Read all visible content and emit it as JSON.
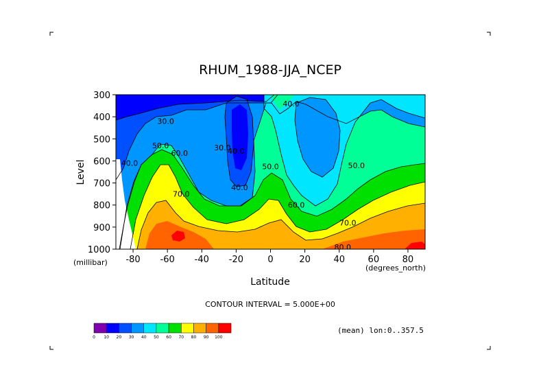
{
  "chart_data": {
    "type": "contour",
    "title": "RHUM_1988-JJA_NCEP",
    "xlabel": "Latitude",
    "ylabel": "Level",
    "x_unit": "(degrees_north)",
    "y_unit": "(millibar)",
    "xlim": [
      -90,
      90
    ],
    "ylim": [
      1000,
      300
    ],
    "x_ticks": [
      "-80",
      "-60",
      "-40",
      "-20",
      "0",
      "20",
      "40",
      "60",
      "80"
    ],
    "x_tick_values": [
      -80,
      -60,
      -40,
      -20,
      0,
      20,
      40,
      60,
      80
    ],
    "y_ticks": [
      "300",
      "400",
      "500",
      "600",
      "700",
      "800",
      "900",
      "1000"
    ],
    "y_tick_values": [
      300,
      400,
      500,
      600,
      700,
      800,
      900,
      1000
    ],
    "contour_interval_text": "CONTOUR INTERVAL = 5.000E+00",
    "footnote": "(mean) lon:0..357.5",
    "colorbar": {
      "labels": [
        "0",
        "10",
        "20",
        "30",
        "40",
        "50",
        "60",
        "70",
        "80",
        "90",
        "100"
      ],
      "colors": [
        "#8000b0",
        "#0000ff",
        "#0050ff",
        "#0096ff",
        "#00e6ff",
        "#00ff96",
        "#00e000",
        "#ffff00",
        "#ffb000",
        "#ff6400",
        "#ff0000"
      ]
    },
    "contour_labels": [
      {
        "text": "40.0",
        "lat": 12,
        "lev": 340
      },
      {
        "text": "30.0",
        "lat": -61,
        "lev": 420
      },
      {
        "text": "50.0",
        "lat": -64,
        "lev": 530
      },
      {
        "text": "40.0",
        "lat": -82,
        "lev": 610
      },
      {
        "text": "60.0",
        "lat": -53,
        "lev": 565
      },
      {
        "text": "70.0",
        "lat": -52,
        "lev": 750
      },
      {
        "text": "30.0",
        "lat": -28,
        "lev": 540
      },
      {
        "text": "40.0",
        "lat": -20,
        "lev": 555
      },
      {
        "text": "40.0",
        "lat": -18,
        "lev": 720
      },
      {
        "text": "50.0",
        "lat": 0,
        "lev": 625
      },
      {
        "text": "60.0",
        "lat": 15,
        "lev": 800
      },
      {
        "text": "50.0",
        "lat": 50,
        "lev": 620
      },
      {
        "text": "70.0",
        "lat": 45,
        "lev": 880
      },
      {
        "text": "80.0",
        "lat": 42,
        "lev": 990
      }
    ],
    "grid": false,
    "legend_position": "bottom-left"
  }
}
